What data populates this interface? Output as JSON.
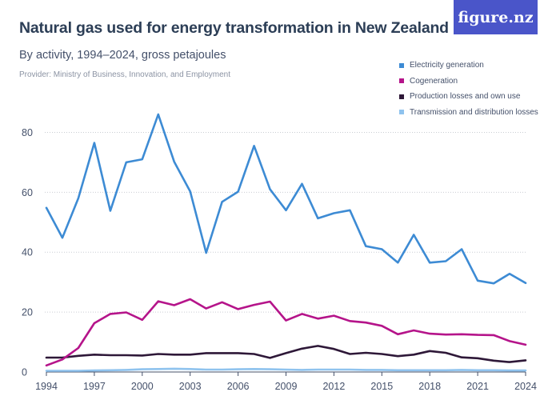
{
  "header": {
    "title": "Natural gas used for energy transformation in New Zealand",
    "subtitle": "By activity, 1994–2024, gross petajoules",
    "provider": "Provider: Ministry of Business, Innovation, and Employment",
    "logo": "figure.nz"
  },
  "chart_data": {
    "type": "line",
    "x": [
      1994,
      1995,
      1996,
      1997,
      1998,
      1999,
      2000,
      2001,
      2002,
      2003,
      2004,
      2005,
      2006,
      2007,
      2008,
      2009,
      2010,
      2011,
      2012,
      2013,
      2014,
      2015,
      2016,
      2017,
      2018,
      2019,
      2020,
      2021,
      2022,
      2023,
      2024
    ],
    "x_ticks": [
      1994,
      1997,
      2000,
      2003,
      2006,
      2009,
      2012,
      2015,
      2018,
      2021,
      2024
    ],
    "y_ticks": [
      0,
      20,
      40,
      60,
      80
    ],
    "ylim": [
      0,
      90
    ],
    "grid": "horizontal",
    "legend_placement": "top-right",
    "series": [
      {
        "name": "Electricity generation",
        "color": "#3d8bd4",
        "values": [
          54.8,
          44.8,
          58.0,
          76.5,
          53.8,
          70.0,
          71.0,
          86.0,
          70.2,
          60.3,
          39.8,
          56.8,
          60.2,
          75.5,
          61.0,
          54.0,
          62.8,
          51.3,
          53.0,
          54.0,
          42.0,
          41.0,
          36.5,
          45.8,
          36.5,
          37.0,
          41.0,
          30.5,
          29.6,
          32.8,
          29.7
        ]
      },
      {
        "name": "Cogeneration",
        "color": "#b5148a",
        "values": [
          2.2,
          4.2,
          8.0,
          16.3,
          19.4,
          19.9,
          17.4,
          23.6,
          22.3,
          24.3,
          21.2,
          23.3,
          21.0,
          22.4,
          23.5,
          17.2,
          19.4,
          17.8,
          18.8,
          17.0,
          16.5,
          15.4,
          12.6,
          13.9,
          12.8,
          12.5,
          12.6,
          12.4,
          12.3,
          10.3,
          9.1
        ]
      },
      {
        "name": "Production losses and own use",
        "color": "#2e1838",
        "values": [
          4.8,
          4.8,
          5.4,
          5.8,
          5.6,
          5.6,
          5.5,
          6.0,
          5.8,
          5.8,
          6.3,
          6.3,
          6.3,
          6.0,
          4.7,
          6.3,
          7.8,
          8.7,
          7.7,
          6.0,
          6.4,
          6.0,
          5.3,
          5.8,
          7.0,
          6.4,
          4.9,
          4.6,
          3.8,
          3.3,
          3.9
        ]
      },
      {
        "name": "Transmission and distribution losses",
        "color": "#8fc3ee",
        "values": [
          0.4,
          0.4,
          0.4,
          0.5,
          0.6,
          0.7,
          0.9,
          1.0,
          1.1,
          1.0,
          0.8,
          0.8,
          0.9,
          1.0,
          0.9,
          0.8,
          0.7,
          0.8,
          0.8,
          0.8,
          0.7,
          0.7,
          0.6,
          0.6,
          0.6,
          0.6,
          0.7,
          0.6,
          0.6,
          0.5,
          0.5
        ]
      }
    ]
  }
}
